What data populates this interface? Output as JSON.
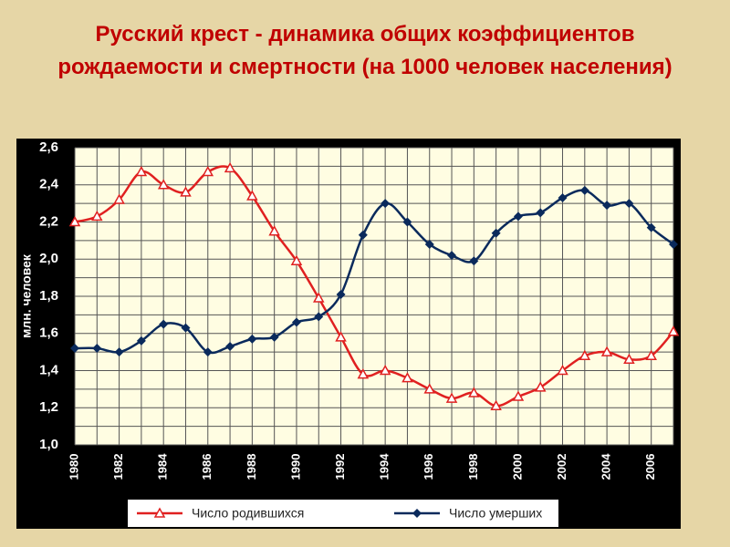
{
  "chart_data": {
    "type": "line",
    "title": "Русский крест - динамика общих коэффициентов рождаемости и смертности (на 1000 человек населения)",
    "y_label": "млн. человек",
    "x": [
      1980,
      1981,
      1982,
      1983,
      1984,
      1985,
      1986,
      1987,
      1988,
      1989,
      1990,
      1991,
      1992,
      1993,
      1994,
      1995,
      1996,
      1997,
      1998,
      1999,
      2000,
      2001,
      2002,
      2003,
      2004,
      2005,
      2006,
      2007
    ],
    "series": [
      {
        "name": "Число родившихся",
        "color": "#e02020",
        "marker": "triangle",
        "values": [
          2.2,
          2.23,
          2.32,
          2.47,
          2.4,
          2.36,
          2.47,
          2.49,
          2.34,
          2.15,
          1.99,
          1.79,
          1.58,
          1.38,
          1.4,
          1.36,
          1.3,
          1.25,
          1.28,
          1.21,
          1.26,
          1.31,
          1.4,
          1.48,
          1.5,
          1.46,
          1.48,
          1.61
        ]
      },
      {
        "name": "Число умерших",
        "color": "#0a2a5c",
        "marker": "diamond",
        "values": [
          1.52,
          1.52,
          1.5,
          1.56,
          1.65,
          1.63,
          1.5,
          1.53,
          1.57,
          1.58,
          1.66,
          1.69,
          1.81,
          2.13,
          2.3,
          2.2,
          2.08,
          2.02,
          1.99,
          2.14,
          2.23,
          2.25,
          2.33,
          2.37,
          2.29,
          2.3,
          2.17,
          2.08
        ]
      }
    ],
    "xlim": [
      1980,
      2007
    ],
    "xticks": [
      1980,
      1982,
      1984,
      1986,
      1988,
      1990,
      1992,
      1994,
      1996,
      1998,
      2000,
      2002,
      2004,
      2006
    ],
    "x_minor_ticks": [
      1981,
      1983,
      1985,
      1987,
      1989,
      1991,
      1993,
      1995,
      1997,
      1999,
      2001,
      2003,
      2005,
      2007
    ],
    "ylim": [
      1.0,
      2.6
    ],
    "yticks": [
      {
        "value": 1.0,
        "label": "1,0"
      },
      {
        "value": 1.2,
        "label": "1,2"
      },
      {
        "value": 1.4,
        "label": "1,4"
      },
      {
        "value": 1.6,
        "label": "1,6"
      },
      {
        "value": 1.8,
        "label": "1,8"
      },
      {
        "value": 2.0,
        "label": "2,0"
      },
      {
        "value": 2.2,
        "label": "2,2"
      },
      {
        "value": 2.4,
        "label": "2,4"
      },
      {
        "value": 2.6,
        "label": "2,6"
      }
    ],
    "y_minor_ticks": [
      1.1,
      1.3,
      1.5,
      1.7,
      1.9,
      2.1,
      2.3,
      2.5
    ],
    "grid": true,
    "legend": "bottom"
  }
}
